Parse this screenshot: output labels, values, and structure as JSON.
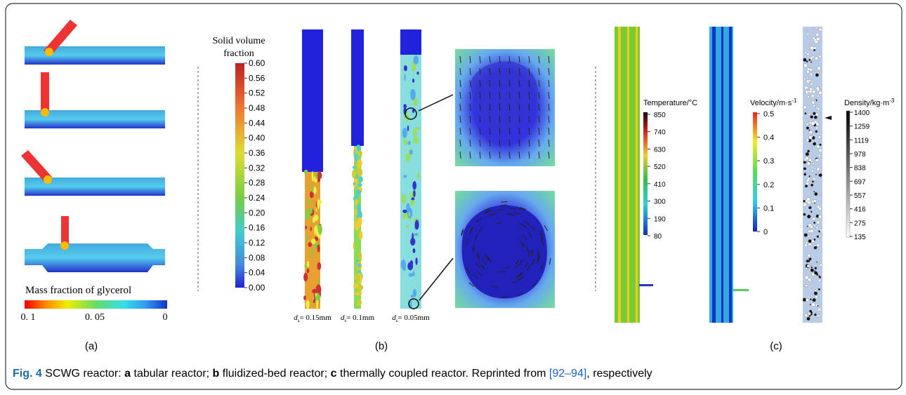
{
  "panel_a": {
    "colorbar_title": "Mass fraction of glycerol",
    "colorbar_ticks": [
      "0. 1",
      "0. 05",
      "0"
    ],
    "label": "(a)"
  },
  "panel_b": {
    "colorbar_title_lines": [
      "Solid volume",
      "fraction"
    ],
    "colorbar_ticks": [
      "0.60",
      "0.56",
      "0.52",
      "0.48",
      "0.44",
      "0.40",
      "0.36",
      "0.32",
      "0.28",
      "0.24",
      "0.20",
      "0.16",
      "0.12",
      "0.08",
      "0.04",
      "0.00"
    ],
    "column_labels": [
      {
        "symbol": "d",
        "subscript": "s",
        "value": "= 0.15mm"
      },
      {
        "symbol": "d",
        "subscript": "s",
        "value": "= 0.1mm"
      },
      {
        "symbol": "d",
        "subscript": "s",
        "value": "= 0.05mm"
      }
    ],
    "label": "(b)"
  },
  "panel_c": {
    "colorbars": [
      {
        "title": "Temperature/°C",
        "ticks": [
          "850",
          "740",
          "630",
          "520",
          "410",
          "300",
          "190",
          "80"
        ]
      },
      {
        "title": "Velocity/m·s",
        "superscript": "-1",
        "ticks": [
          "0.5",
          "0.4",
          "0.3",
          "0.2",
          "0.1",
          "0"
        ]
      },
      {
        "title": "Density/kg·m",
        "superscript": "-3",
        "ticks": [
          "1400",
          "1259",
          "1119",
          "978",
          "838",
          "697",
          "557",
          "416",
          "275",
          "135"
        ]
      }
    ],
    "label": "(c)"
  },
  "caption": {
    "figure": "Fig. 4",
    "parts": [
      " SCWG reactor: ",
      "a",
      " tabular reactor; ",
      "b",
      " fluidized-bed reactor; ",
      "c",
      " thermally coupled reactor. Reprinted from ",
      "[92–94]",
      ", respectively"
    ]
  }
}
